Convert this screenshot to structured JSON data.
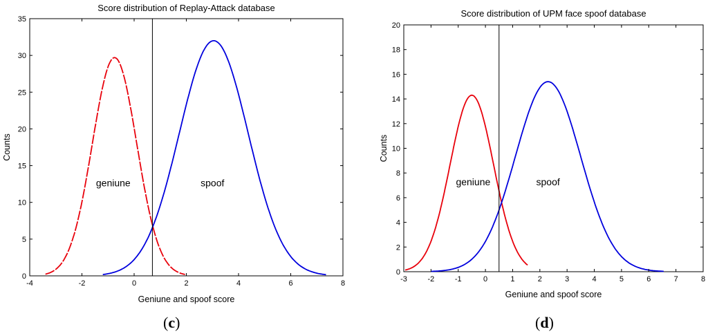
{
  "chart_data": [
    {
      "type": "line",
      "title": "Score distribution of Replay-Attack database",
      "xlabel": "Geniune and spoof score",
      "ylabel": "Counts",
      "xlim": [
        -4,
        8
      ],
      "ylim": [
        0,
        35
      ],
      "xticks": [
        -4,
        -2,
        0,
        2,
        4,
        6,
        8
      ],
      "yticks": [
        0,
        5,
        10,
        15,
        20,
        25,
        30,
        35
      ],
      "threshold_x": 0.7,
      "grid": false,
      "caption_prefix": "(",
      "caption_letter": "c",
      "caption_suffix": ")",
      "annotations": [
        {
          "text": "geniune",
          "x": -0.8,
          "y": 12.2
        },
        {
          "text": "spoof",
          "x": 3.0,
          "y": 12.2
        }
      ],
      "series": [
        {
          "color": "#e8000b",
          "dashed": true,
          "mean": -0.75,
          "sigma": 0.85,
          "peak": 29.7,
          "x_range": [
            -3.4,
            1.95
          ]
        },
        {
          "color": "#0000dd",
          "dashed": false,
          "mean": 3.05,
          "sigma": 1.32,
          "peak": 32.0,
          "x_range": [
            -1.2,
            7.35
          ]
        }
      ]
    },
    {
      "type": "line",
      "title": "Score distribution of UPM face spoof database",
      "xlabel": "Geniune and spoof score",
      "ylabel": "Counts",
      "xlim": [
        -3,
        8
      ],
      "ylim": [
        0,
        20
      ],
      "xticks": [
        -3,
        -2,
        -1,
        0,
        1,
        2,
        3,
        4,
        5,
        6,
        7,
        8
      ],
      "yticks": [
        0,
        2,
        4,
        6,
        8,
        10,
        12,
        14,
        16,
        18,
        20
      ],
      "threshold_x": 0.5,
      "grid": false,
      "caption_prefix": "(",
      "caption_letter": "d",
      "caption_suffix": ")",
      "annotations": [
        {
          "text": "geniune",
          "x": -0.45,
          "y": 7.0
        },
        {
          "text": "spoof",
          "x": 2.3,
          "y": 7.0
        }
      ],
      "series": [
        {
          "color": "#e8000b",
          "dashed": false,
          "mean": -0.5,
          "sigma": 0.8,
          "peak": 14.3,
          "x_range": [
            -2.95,
            1.55
          ]
        },
        {
          "color": "#0000dd",
          "dashed": false,
          "mean": 2.3,
          "sigma": 1.2,
          "peak": 15.4,
          "x_range": [
            -2.0,
            6.55
          ]
        }
      ]
    }
  ]
}
